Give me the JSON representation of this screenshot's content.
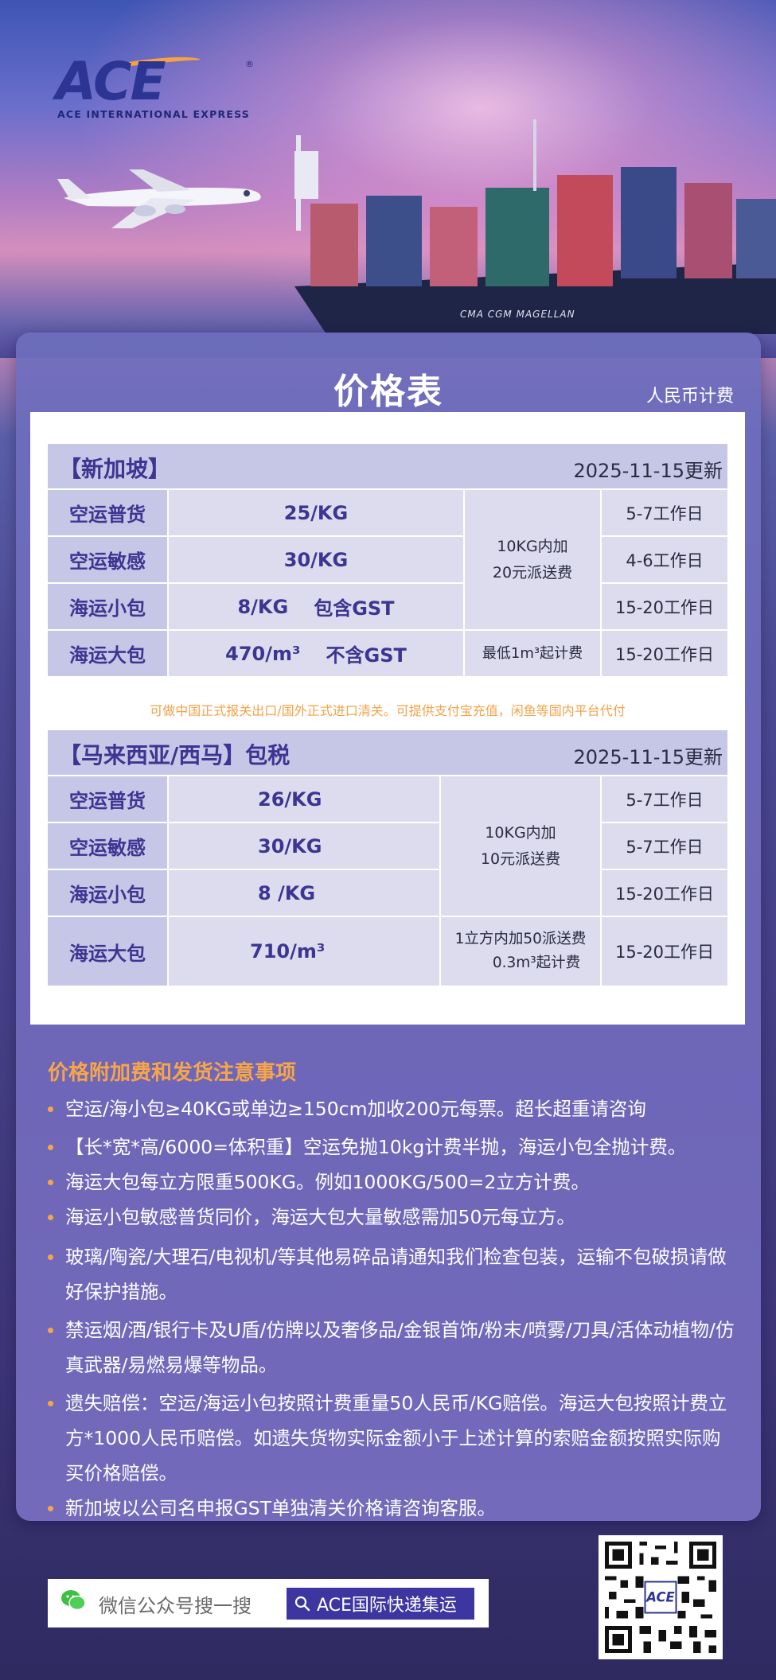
{
  "brand": {
    "name": "ACE",
    "subtitle": "ACE INTERNATIONAL EXPRESS",
    "registered": "®",
    "ship_name": "CMA CGM MAGELLAN"
  },
  "header": {
    "title": "价格表",
    "currency": "人民币计费"
  },
  "singapore": {
    "name": "【新加坡】",
    "date": "2025-11-15更新",
    "rows": [
      {
        "label": "空运普货",
        "price": "25/KG",
        "days": "5-7工作日"
      },
      {
        "label": "空运敏感",
        "price": "30/KG",
        "days": "4-6工作日"
      },
      {
        "label": "海运小包",
        "price": "8/KG",
        "gst": "包含GST",
        "days": "15-20工作日"
      },
      {
        "label": "海运大包",
        "price": "470/m³",
        "gst": "不含GST",
        "days": "15-20工作日"
      }
    ],
    "fee_line1": "10KG内加",
    "fee_line2": "20元派送费",
    "min_charge": "最低1m³起计费",
    "customs_note": "可做中国正式报关出口/国外正式进口清关。可提供支付宝充值，闲鱼等国内平台代付"
  },
  "malaysia": {
    "name": "【马来西亚/西马】包税",
    "date": "2025-11-15更新",
    "rows": [
      {
        "label": "空运普货",
        "price": "26/KG",
        "days": "5-7工作日"
      },
      {
        "label": "空运敏感",
        "price": "30/KG",
        "days": "5-7工作日"
      },
      {
        "label": "海运小包",
        "price": "8 /KG",
        "days": "15-20工作日"
      },
      {
        "label": "海运大包",
        "price": "710/m³",
        "days": "15-20工作日"
      }
    ],
    "fee_line1": "10KG内加",
    "fee_line2": "10元派送费",
    "big_line1": "1立方内加50派送费",
    "big_line2": "0.3m³起计费"
  },
  "notes": {
    "title": "价格附加费和发货注意事项",
    "items": [
      "空运/海小包≥40KG或单边≥150cm加收200元每票。超长超重请咨询",
      "【长*宽*高/6000=体积重】空运免抛10kg计费半抛，海运小包全抛计费。",
      "海运大包每立方限重500KG。例如1000KG/500=2立方计费。",
      "海运小包敏感普货同价，海运大包大量敏感需加50元每立方。",
      "玻璃/陶瓷/大理石/电视机/等其他易碎品请通知我们检查包装，运输不包破损请做好保护措施。",
      "禁运烟/酒/银行卡及U盾/仿牌以及奢侈品/金银首饰/粉末/喷雾/刀具/活体动植物/仿 真武器/易燃易爆等物品。",
      "遗失赔偿：空运/海运小包按照计费重量50人民币/KG赔偿。海运大包按照计费立方*1000人民币赔偿。如遗失货物实际金额小于上述计算的索赔金额按照实际购买价格赔偿。",
      "新加坡以公司名申报GST单独清关价格请咨询客服。"
    ]
  },
  "footer": {
    "search_hint": "微信公众号搜一搜",
    "account_name": "ACE国际快递集运",
    "qr_label": "ACE"
  },
  "colors": {
    "accent_orange": "#f6a64a",
    "brand_purple": "#3c3592",
    "header_cell": "#c6c7e6",
    "body_cell": "#dcdcee"
  }
}
